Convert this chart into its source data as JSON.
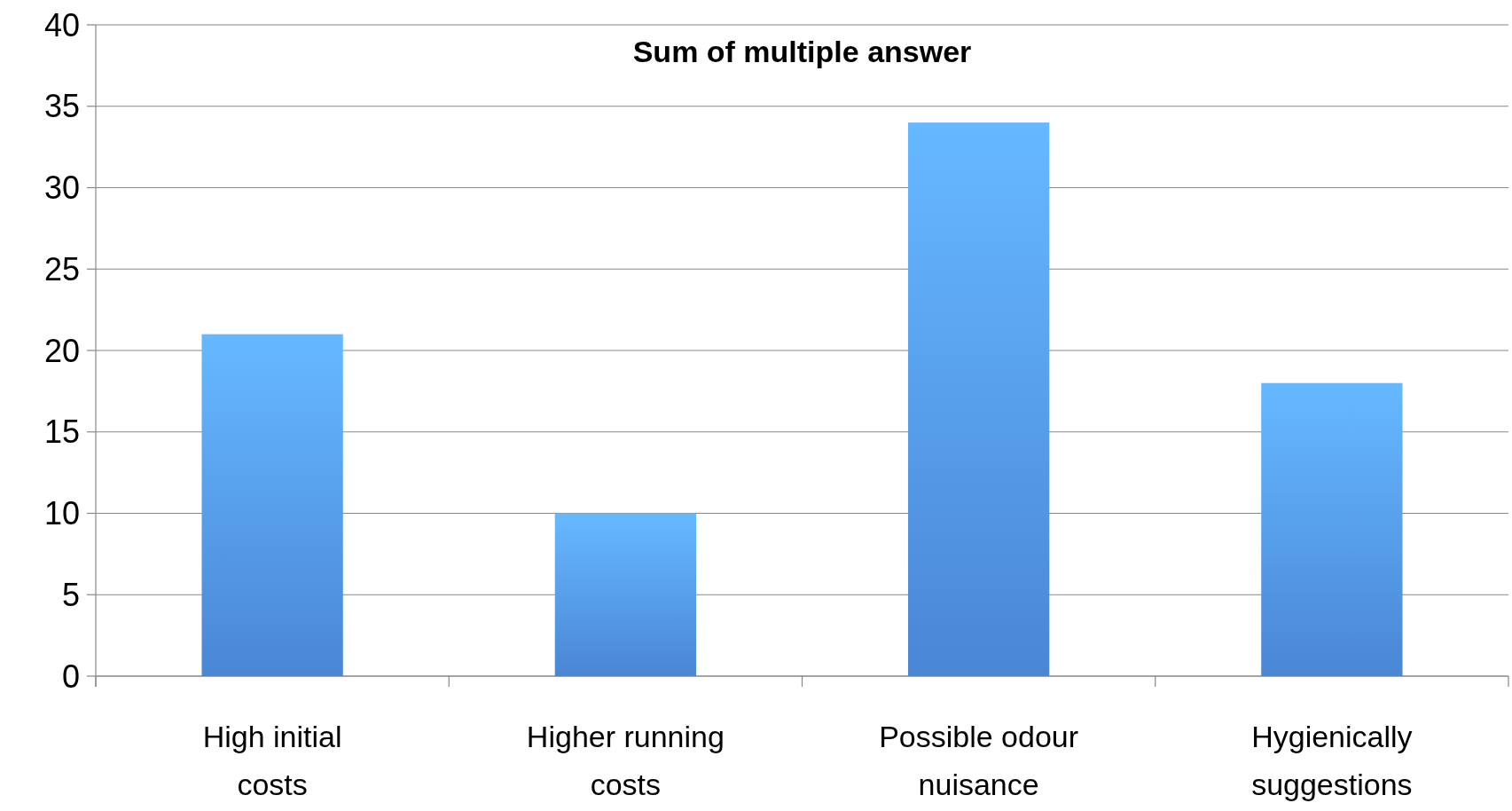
{
  "chart_data": {
    "type": "bar",
    "title": "Sum of multiple answer",
    "categories": [
      "High initial costs",
      "Higher running costs",
      "Possible odour nuisance",
      "Hygienically suggestions"
    ],
    "values": [
      21,
      10,
      34,
      18
    ],
    "color": "#4a86d4",
    "ylim": [
      0,
      40
    ],
    "yticks": [
      0,
      5,
      10,
      15,
      20,
      25,
      30,
      35,
      40
    ],
    "grid": "y"
  }
}
